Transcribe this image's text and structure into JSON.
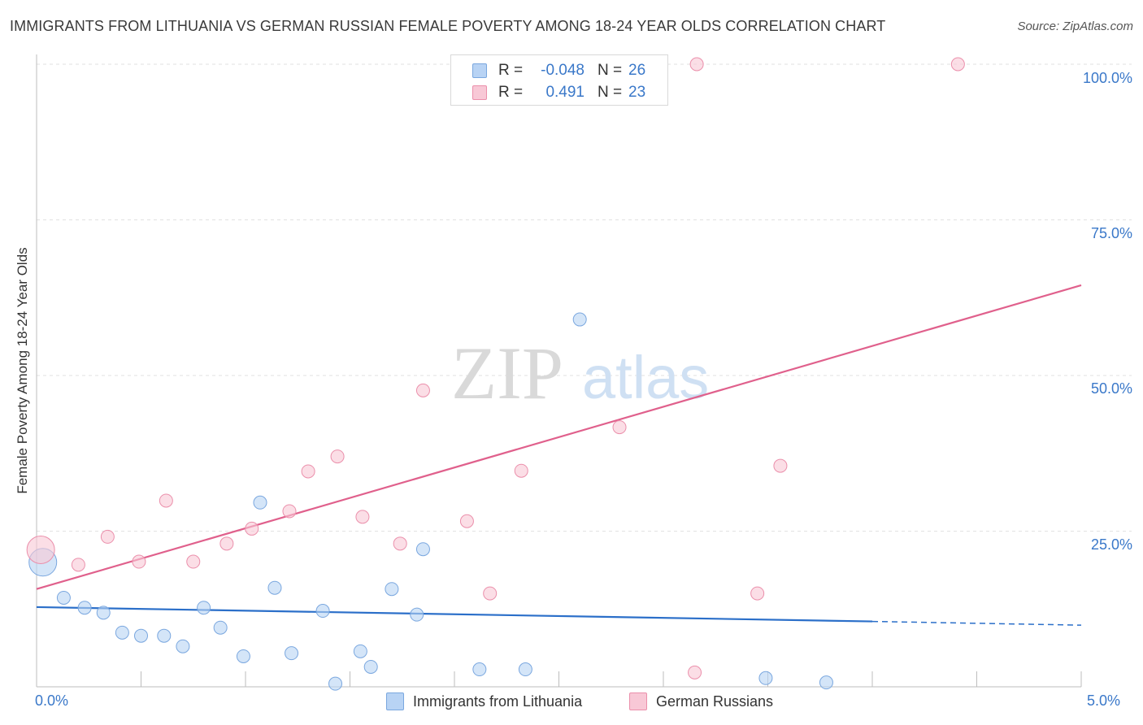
{
  "title": "IMMIGRANTS FROM LITHUANIA VS GERMAN RUSSIAN FEMALE POVERTY AMONG 18-24 YEAR OLDS CORRELATION CHART",
  "source": "Source: ZipAtlas.com",
  "watermark": {
    "zip": "ZIP",
    "atlas": "atlas"
  },
  "legend": {
    "r_label": "R =",
    "n_label": "N =",
    "rows": [
      {
        "name": "Immigrants from Lithuania",
        "r": "-0.048",
        "n": "26"
      },
      {
        "name": "German Russians",
        "r": "0.491",
        "n": "23"
      }
    ]
  },
  "colors": {
    "blue_fill": "#b8d3f4",
    "blue_stroke": "#7aa7df",
    "blue_line": "#2b6fc9",
    "pink_fill": "#f8c8d6",
    "pink_stroke": "#eb8fab",
    "pink_line": "#e0608c",
    "tick_text": "#3a78c9",
    "grid": "#e2e2e2"
  },
  "chart_data": {
    "type": "scatter",
    "title": "IMMIGRANTS FROM LITHUANIA VS GERMAN RUSSIAN FEMALE POVERTY AMONG 18-24 YEAR OLDS CORRELATION CHART",
    "xlabel": "",
    "ylabel": "Female Poverty Among 18-24 Year Olds",
    "xlim": [
      0,
      5
    ],
    "ylim": [
      0,
      100
    ],
    "x_tick_labels": [
      "0.0%",
      "5.0%"
    ],
    "y_ticks": [
      {
        "value": 25,
        "label": "25.0%"
      },
      {
        "value": 50,
        "label": "50.0%"
      },
      {
        "value": 75,
        "label": "75.0%"
      },
      {
        "value": 100,
        "label": "100.0%"
      }
    ],
    "series": [
      {
        "name": "Immigrants from Lithuania",
        "color": "blue",
        "r": -0.048,
        "n": 26,
        "points": [
          {
            "x": 0.03,
            "y": 20.0,
            "big": true
          },
          {
            "x": 0.13,
            "y": 14.3
          },
          {
            "x": 0.23,
            "y": 12.7
          },
          {
            "x": 0.32,
            "y": 11.9
          },
          {
            "x": 0.41,
            "y": 8.7
          },
          {
            "x": 0.5,
            "y": 8.2
          },
          {
            "x": 0.61,
            "y": 8.2
          },
          {
            "x": 0.7,
            "y": 6.5
          },
          {
            "x": 0.8,
            "y": 12.7
          },
          {
            "x": 0.88,
            "y": 9.5
          },
          {
            "x": 0.99,
            "y": 4.9
          },
          {
            "x": 1.07,
            "y": 29.6
          },
          {
            "x": 1.14,
            "y": 15.9
          },
          {
            "x": 1.22,
            "y": 5.4
          },
          {
            "x": 1.37,
            "y": 12.2
          },
          {
            "x": 1.43,
            "y": 0.5
          },
          {
            "x": 1.55,
            "y": 5.7
          },
          {
            "x": 1.6,
            "y": 3.2
          },
          {
            "x": 1.7,
            "y": 15.7
          },
          {
            "x": 1.82,
            "y": 11.6
          },
          {
            "x": 1.85,
            "y": 22.1
          },
          {
            "x": 2.12,
            "y": 2.8
          },
          {
            "x": 2.34,
            "y": 2.8
          },
          {
            "x": 2.6,
            "y": 59.0
          },
          {
            "x": 3.49,
            "y": 1.4
          },
          {
            "x": 3.78,
            "y": 0.7
          }
        ],
        "trend": {
          "x0": 0.0,
          "y0": 12.8,
          "x1": 4.0,
          "y1": 10.5,
          "dash_x1": 5.0,
          "dash_y1": 9.9
        }
      },
      {
        "name": "German Russians",
        "color": "pink",
        "r": 0.491,
        "n": 23,
        "points": [
          {
            "x": 0.02,
            "y": 22.0,
            "big": true
          },
          {
            "x": 0.2,
            "y": 19.6
          },
          {
            "x": 0.34,
            "y": 24.1
          },
          {
            "x": 0.49,
            "y": 20.1
          },
          {
            "x": 0.62,
            "y": 29.9
          },
          {
            "x": 0.75,
            "y": 20.1
          },
          {
            "x": 0.91,
            "y": 23.0
          },
          {
            "x": 1.03,
            "y": 25.4
          },
          {
            "x": 1.21,
            "y": 28.2
          },
          {
            "x": 1.3,
            "y": 34.6
          },
          {
            "x": 1.44,
            "y": 37.0
          },
          {
            "x": 1.56,
            "y": 27.3
          },
          {
            "x": 1.74,
            "y": 23.0
          },
          {
            "x": 1.85,
            "y": 47.6
          },
          {
            "x": 2.06,
            "y": 26.6
          },
          {
            "x": 2.17,
            "y": 15.0
          },
          {
            "x": 2.32,
            "y": 34.7
          },
          {
            "x": 2.79,
            "y": 41.7
          },
          {
            "x": 3.15,
            "y": 2.3
          },
          {
            "x": 3.16,
            "y": 100.0
          },
          {
            "x": 3.45,
            "y": 15.0
          },
          {
            "x": 3.56,
            "y": 35.5
          },
          {
            "x": 4.41,
            "y": 100.0
          }
        ],
        "trend": {
          "x0": 0.0,
          "y0": 15.7,
          "x1": 5.0,
          "y1": 64.5
        }
      }
    ]
  }
}
